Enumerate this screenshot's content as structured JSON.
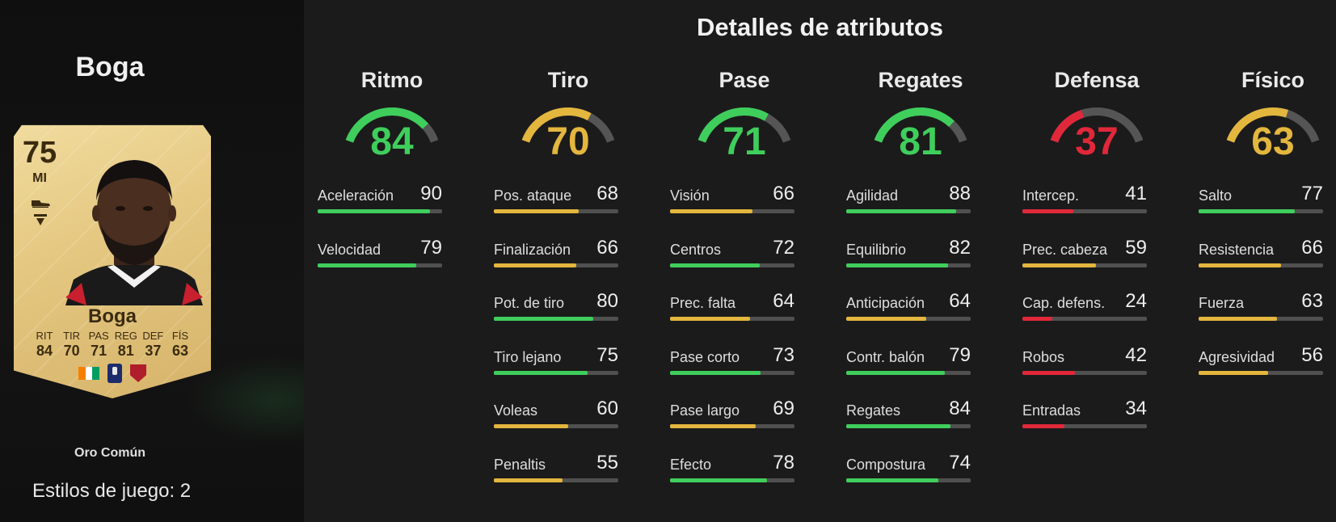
{
  "colors": {
    "green": "#3fce5c",
    "yellow": "#e3b63e",
    "red": "#e1283a",
    "track": "#505050"
  },
  "player": {
    "name": "Boga",
    "rarity": "Oro Común",
    "playstyles": "Estilos de juego: 2",
    "card": {
      "rating": "75",
      "position": "MI",
      "name": "Boga",
      "stat_labels": [
        "RIT",
        "TIR",
        "PAS",
        "REG",
        "DEF",
        "FÍS"
      ],
      "stat_values": [
        "84",
        "70",
        "71",
        "81",
        "37",
        "63"
      ],
      "icons": [
        "boot-icon",
        "evolution-icon",
        "ivory-coast-flag-icon",
        "ligue-1-logo-icon",
        "ogc-nice-crest-icon"
      ]
    }
  },
  "section_title": "Detalles de atributos",
  "categories": [
    {
      "key": "ritmo",
      "title": "Ritmo",
      "value": "84",
      "level": 84,
      "color": "green",
      "attributes": [
        {
          "name": "Aceleración",
          "value": "90",
          "level": 90,
          "color": "green"
        },
        {
          "name": "Velocidad",
          "value": "79",
          "level": 79,
          "color": "green"
        }
      ]
    },
    {
      "key": "tiro",
      "title": "Tiro",
      "value": "70",
      "level": 70,
      "color": "yellow",
      "attributes": [
        {
          "name": "Pos. ataque",
          "value": "68",
          "level": 68,
          "color": "yellow"
        },
        {
          "name": "Finalización",
          "value": "66",
          "level": 66,
          "color": "yellow"
        },
        {
          "name": "Pot. de tiro",
          "value": "80",
          "level": 80,
          "color": "green"
        },
        {
          "name": "Tiro lejano",
          "value": "75",
          "level": 75,
          "color": "green"
        },
        {
          "name": "Voleas",
          "value": "60",
          "level": 60,
          "color": "yellow"
        },
        {
          "name": "Penaltis",
          "value": "55",
          "level": 55,
          "color": "yellow"
        }
      ]
    },
    {
      "key": "pase",
      "title": "Pase",
      "value": "71",
      "level": 71,
      "color": "green",
      "attributes": [
        {
          "name": "Visión",
          "value": "66",
          "level": 66,
          "color": "yellow"
        },
        {
          "name": "Centros",
          "value": "72",
          "level": 72,
          "color": "green"
        },
        {
          "name": "Prec. falta",
          "value": "64",
          "level": 64,
          "color": "yellow"
        },
        {
          "name": "Pase corto",
          "value": "73",
          "level": 73,
          "color": "green"
        },
        {
          "name": "Pase largo",
          "value": "69",
          "level": 69,
          "color": "yellow"
        },
        {
          "name": "Efecto",
          "value": "78",
          "level": 78,
          "color": "green"
        }
      ]
    },
    {
      "key": "regates",
      "title": "Regates",
      "value": "81",
      "level": 81,
      "color": "green",
      "attributes": [
        {
          "name": "Agilidad",
          "value": "88",
          "level": 88,
          "color": "green"
        },
        {
          "name": "Equilibrio",
          "value": "82",
          "level": 82,
          "color": "green"
        },
        {
          "name": "Anticipación",
          "value": "64",
          "level": 64,
          "color": "yellow"
        },
        {
          "name": "Contr. balón",
          "value": "79",
          "level": 79,
          "color": "green"
        },
        {
          "name": "Regates",
          "value": "84",
          "level": 84,
          "color": "green"
        },
        {
          "name": "Compostura",
          "value": "74",
          "level": 74,
          "color": "green"
        }
      ]
    },
    {
      "key": "defensa",
      "title": "Defensa",
      "value": "37",
      "level": 37,
      "color": "red",
      "attributes": [
        {
          "name": "Intercep.",
          "value": "41",
          "level": 41,
          "color": "red"
        },
        {
          "name": "Prec. cabeza",
          "value": "59",
          "level": 59,
          "color": "yellow"
        },
        {
          "name": "Cap. defens.",
          "value": "24",
          "level": 24,
          "color": "red"
        },
        {
          "name": "Robos",
          "value": "42",
          "level": 42,
          "color": "red"
        },
        {
          "name": "Entradas",
          "value": "34",
          "level": 34,
          "color": "red"
        }
      ]
    },
    {
      "key": "fisico",
      "title": "Físico",
      "value": "63",
      "level": 63,
      "color": "yellow",
      "attributes": [
        {
          "name": "Salto",
          "value": "77",
          "level": 77,
          "color": "green"
        },
        {
          "name": "Resistencia",
          "value": "66",
          "level": 66,
          "color": "yellow"
        },
        {
          "name": "Fuerza",
          "value": "63",
          "level": 63,
          "color": "yellow"
        },
        {
          "name": "Agresividad",
          "value": "56",
          "level": 56,
          "color": "yellow"
        }
      ]
    }
  ]
}
